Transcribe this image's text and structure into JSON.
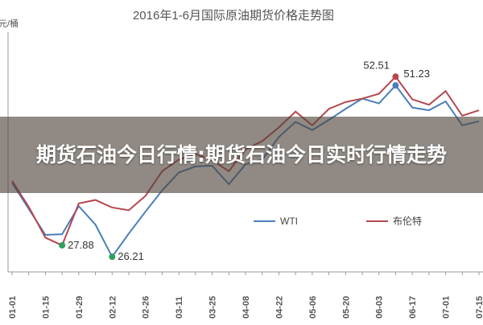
{
  "overlay_title": "期货石油今日行情:期货石油今日实时行情走势",
  "chart_data": {
    "type": "line",
    "title": "2016年1-6月国际原油期货价格走势图",
    "y_label": "元/桶",
    "categories": [
      "01-01",
      null,
      "01-15",
      null,
      "01-29",
      null,
      "02-12",
      null,
      "02-26",
      null,
      "03-11",
      null,
      "03-25",
      null,
      "04-08",
      null,
      "04-22",
      null,
      "05-06",
      null,
      "05-20",
      null,
      "06-03",
      null,
      "06-17",
      null,
      "07-01",
      null,
      "07-15"
    ],
    "ylim": [
      24,
      59
    ],
    "legend": "bottom-right",
    "series": [
      {
        "name": "WTI",
        "color": "#4a7ebb",
        "highlight_color": "#2e9e5e",
        "values": [
          37.0,
          33.2,
          29.4,
          29.5,
          33.6,
          30.9,
          26.21,
          29.6,
          32.8,
          35.9,
          38.5,
          39.4,
          39.5,
          36.8,
          39.7,
          40.4,
          43.7,
          45.9,
          44.7,
          46.2,
          47.8,
          49.3,
          48.6,
          51.23,
          48.0,
          47.6,
          48.9,
          45.4,
          46.0
        ],
        "highlights": [
          26.21,
          51.23
        ]
      },
      {
        "name": "布伦特",
        "color": "#b5484f",
        "highlight_color": "#2e9e5e",
        "values": [
          37.3,
          33.5,
          29.0,
          27.88,
          34.0,
          34.5,
          33.4,
          33.0,
          35.1,
          38.7,
          40.4,
          41.2,
          40.3,
          38.7,
          41.9,
          43.1,
          45.1,
          47.4,
          45.4,
          47.8,
          48.8,
          49.3,
          50.0,
          52.51,
          49.2,
          48.4,
          50.4,
          46.8,
          47.6
        ],
        "highlights": [
          27.88,
          52.51
        ]
      }
    ]
  }
}
